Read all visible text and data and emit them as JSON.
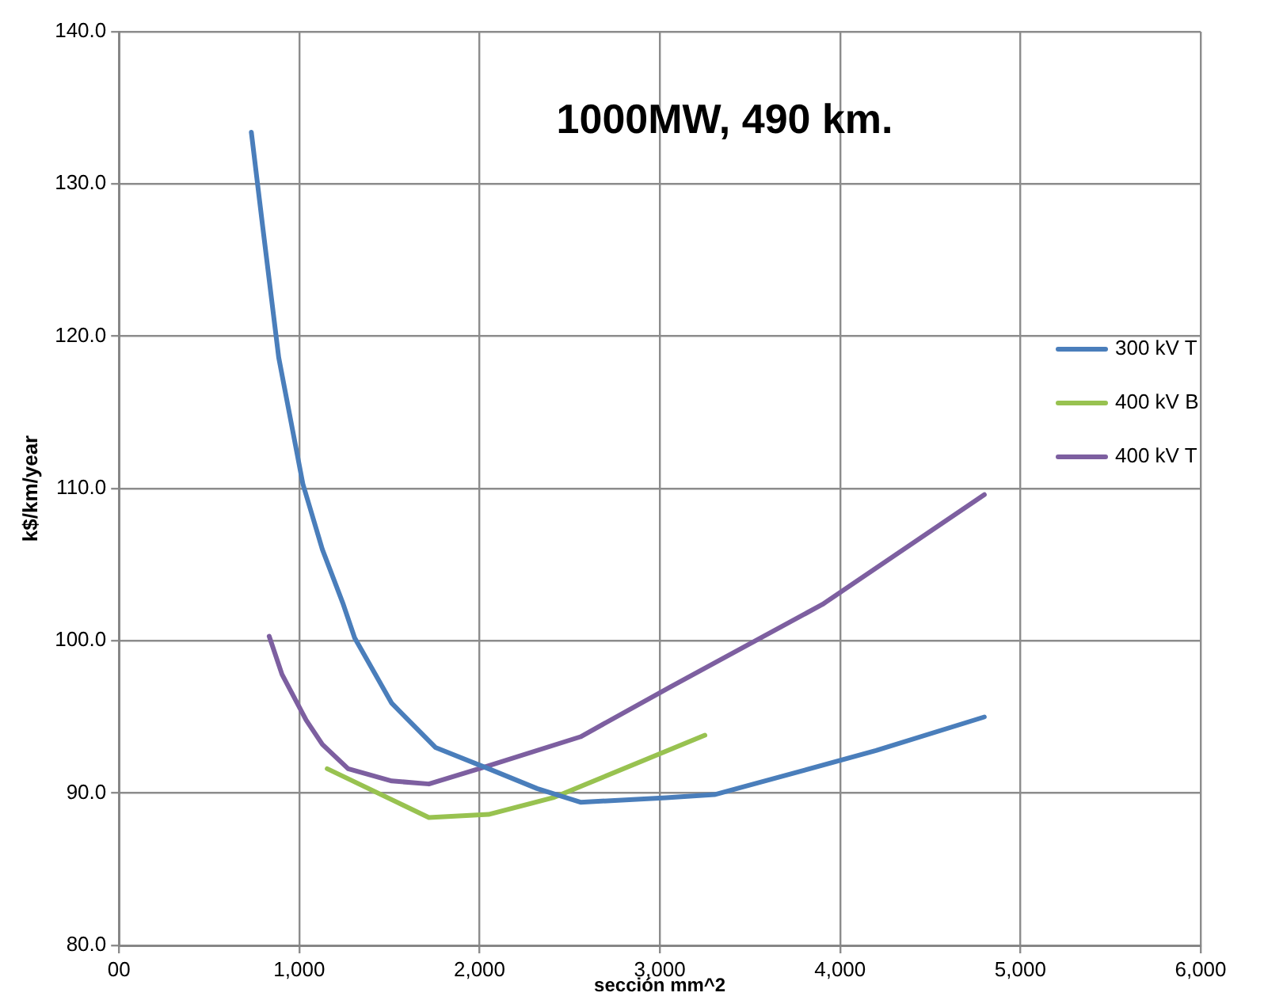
{
  "chart_data": {
    "type": "line",
    "title": "1000MW, 490 km.",
    "xlabel": "sección mm^2",
    "ylabel": "k$/km/year",
    "xlim": [
      0,
      6000
    ],
    "xticks": [
      {
        "value": 0,
        "label": "00"
      },
      {
        "value": 1000,
        "label": "1,000"
      },
      {
        "value": 2000,
        "label": "2,000"
      },
      {
        "value": 3000,
        "label": "3,000"
      },
      {
        "value": 4000,
        "label": "4,000"
      },
      {
        "value": 5000,
        "label": "5,000"
      },
      {
        "value": 6000,
        "label": "6,000"
      }
    ],
    "ylim": [
      80,
      140
    ],
    "yticks": [
      {
        "value": 80,
        "label": "80.0"
      },
      {
        "value": 90,
        "label": "90.0"
      },
      {
        "value": 100,
        "label": "100.0"
      },
      {
        "value": 110,
        "label": "110.0"
      },
      {
        "value": 120,
        "label": "120.0"
      },
      {
        "value": 130,
        "label": "130.0"
      },
      {
        "value": 140,
        "label": "140.0"
      }
    ],
    "grid": true,
    "legend": "right",
    "marker": "none",
    "line_style": "solid",
    "series": [
      {
        "name": "300 kV T",
        "color": "#4a7ebb",
        "x": [
          734,
          797,
          886,
          1020,
          1128,
          1244,
          1307,
          1513,
          1755,
          2050,
          2319,
          2560,
          3035,
          3303,
          3800,
          4199,
          4800
        ],
        "values": [
          133.4,
          127.2,
          118.6,
          110.3,
          106.0,
          102.4,
          100.2,
          95.9,
          93.0,
          91.6,
          90.3,
          89.4,
          89.7,
          89.9,
          91.5,
          92.8,
          95.0
        ]
      },
      {
        "name": "400 kV B",
        "color": "#98c250",
        "x": [
          1155,
          1719,
          2050,
          2408,
          3250
        ],
        "values": [
          91.6,
          88.4,
          88.6,
          89.7,
          93.8
        ]
      },
      {
        "name": "400 kV T",
        "color": "#7d5fa0",
        "x": [
          833,
          904,
          1038,
          1128,
          1271,
          1513,
          1719,
          2050,
          2560,
          3062,
          3903,
          4800
        ],
        "values": [
          100.3,
          97.8,
          94.8,
          93.2,
          91.6,
          90.8,
          90.6,
          91.8,
          93.7,
          97.0,
          102.4,
          109.6
        ]
      }
    ]
  }
}
